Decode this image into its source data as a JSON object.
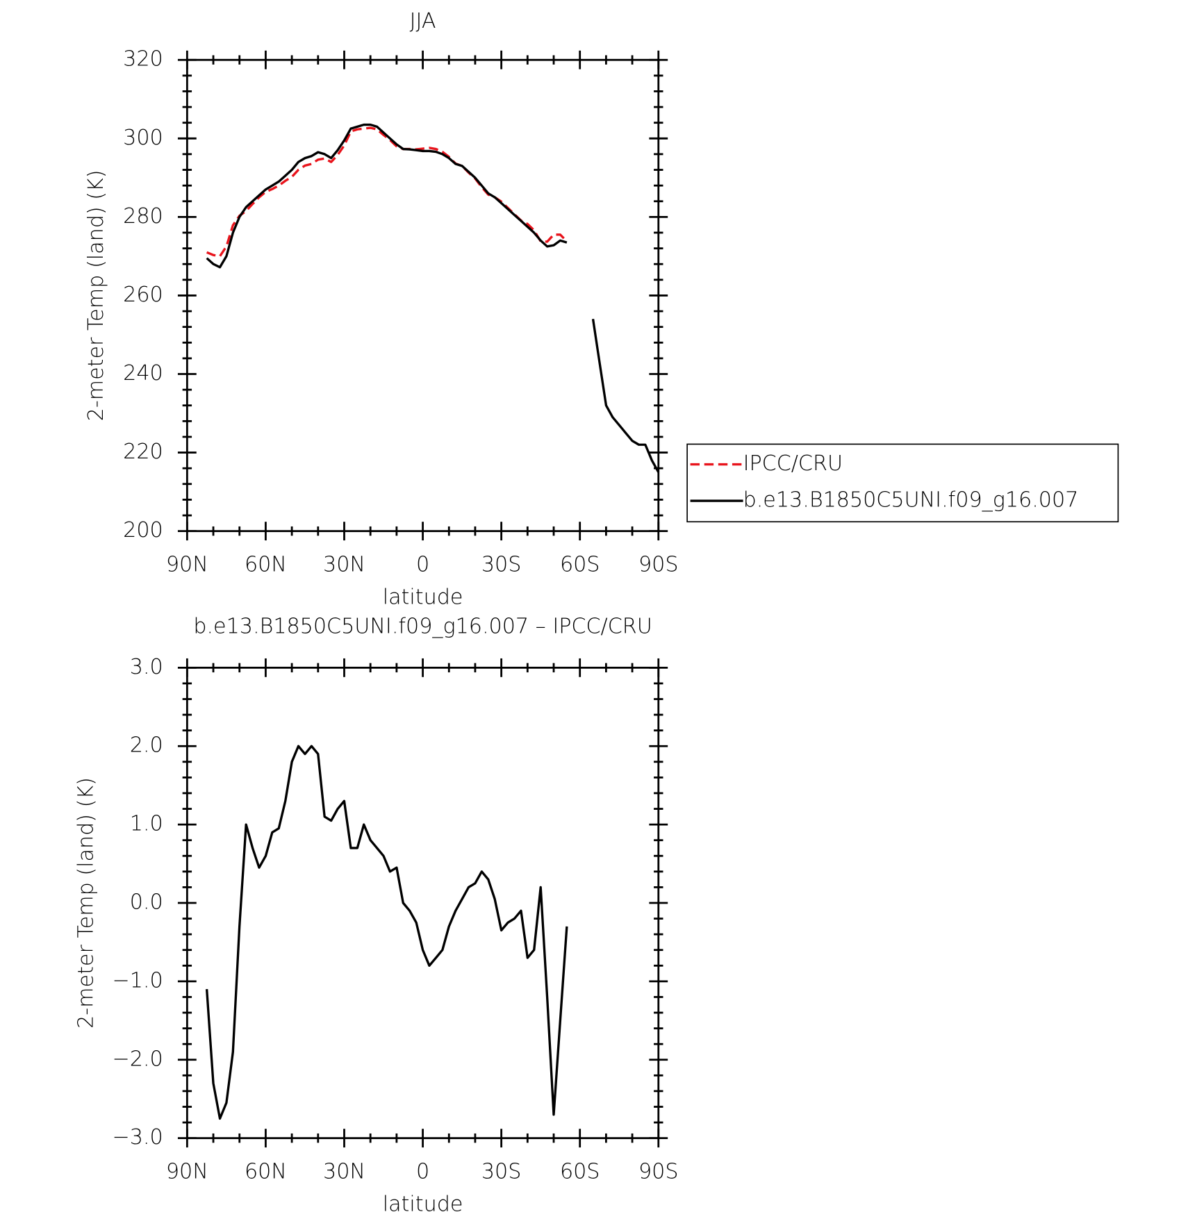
{
  "chart_data": [
    {
      "type": "line",
      "title": "JJA",
      "x_label": "latitude",
      "y_label": "2-meter Temp (land) (K)",
      "x": [
        82.5,
        80,
        77.5,
        75,
        72.5,
        70,
        67.5,
        65,
        62.5,
        60,
        57.5,
        55,
        52.5,
        50,
        47.5,
        45,
        42.5,
        40,
        37.5,
        35,
        32.5,
        30,
        27.5,
        25,
        22.5,
        20,
        17.5,
        15,
        12.5,
        10,
        7.5,
        5,
        2.5,
        0,
        -2.5,
        -5,
        -7.5,
        -10,
        -12.5,
        -15,
        -17.5,
        -20,
        -22.5,
        -25,
        -27.5,
        -30,
        -32.5,
        -35,
        -37.5,
        -40,
        -42.5,
        -45,
        -47.5,
        -50,
        -52.5,
        -55,
        -57.5,
        -60,
        -62.5,
        -65,
        -67.5,
        -70,
        -72.5,
        -75,
        -77.5,
        -80,
        -82.5,
        -85,
        -87.5,
        -90
      ],
      "series": [
        {
          "name": "IPCC/CRU",
          "color": "#e8141c",
          "line_style": "dashed",
          "values": [
            271,
            270.3,
            270,
            272.5,
            277.9,
            280.3,
            281.5,
            283.3,
            285,
            286.4,
            287.1,
            288,
            289.2,
            290.2,
            292,
            293.1,
            293.5,
            294.6,
            294.9,
            294,
            295.8,
            298.2,
            301.8,
            302.3,
            302.5,
            302.7,
            302.3,
            300.9,
            299.6,
            298,
            297.3,
            297.3,
            297.2,
            297.4,
            297.6,
            297.3,
            296.6,
            295.3,
            293.6,
            293,
            291.3,
            289.8,
            287.6,
            285.7,
            285,
            283.9,
            282.3,
            280.7,
            279.1,
            278.2,
            276.6,
            273.8,
            273.7,
            275.5,
            275.5,
            273.8,
            null,
            null,
            null,
            null,
            null,
            null,
            null,
            null,
            null,
            null,
            null,
            null,
            null,
            null
          ]
        },
        {
          "name": "b.e13.B1850C5UNI.f09_g16.007",
          "color": "#000000",
          "line_style": "solid",
          "values": [
            269.5,
            268,
            267.2,
            270,
            276,
            280,
            282.5,
            284,
            285.5,
            287,
            288,
            289,
            290.5,
            292,
            294,
            295,
            295.5,
            296.5,
            296,
            295,
            297,
            299.5,
            302.5,
            303,
            303.5,
            303.5,
            303,
            301.5,
            300,
            298.5,
            297.3,
            297.2,
            297,
            296.8,
            296.8,
            296.6,
            296,
            295,
            293.5,
            293,
            291.5,
            290,
            288,
            286,
            285,
            283.5,
            282,
            280.5,
            279,
            277.5,
            276,
            274,
            272.5,
            272.8,
            274,
            273.5,
            null,
            null,
            null,
            254,
            243,
            232,
            229,
            227,
            225,
            223,
            222,
            222,
            218,
            215
          ]
        }
      ],
      "xlim": [
        90,
        -90
      ],
      "xticks": [
        {
          "value": 90,
          "label": "90N"
        },
        {
          "value": 60,
          "label": "60N"
        },
        {
          "value": 30,
          "label": "30N"
        },
        0,
        {
          "value": -30,
          "label": "30S"
        },
        {
          "value": -60,
          "label": "60S"
        },
        {
          "value": -90,
          "label": "90S"
        }
      ],
      "ylim": [
        200,
        320
      ],
      "yticks": [
        200,
        220,
        240,
        260,
        280,
        300,
        320
      ],
      "legend": "right"
    },
    {
      "type": "line",
      "title": "b.e13.B1850C5UNI.f09_g16.007 – IPCC/CRU",
      "x_label": "latitude",
      "y_label": "2-meter Temp (land) (K)",
      "x": [
        82.5,
        80,
        77.5,
        75,
        72.5,
        70,
        67.5,
        65,
        62.5,
        60,
        57.5,
        55,
        52.5,
        50,
        47.5,
        45,
        42.5,
        40,
        37.5,
        35,
        32.5,
        30,
        27.5,
        25,
        22.5,
        20,
        17.5,
        15,
        12.5,
        10,
        7.5,
        5,
        2.5,
        0,
        -2.5,
        -5,
        -7.5,
        -10,
        -12.5,
        -15,
        -17.5,
        -20,
        -22.5,
        -25,
        -27.5,
        -30,
        -32.5,
        -35,
        -37.5,
        -40,
        -42.5,
        -45,
        -47.5,
        -50,
        -52.5,
        -55
      ],
      "values": [
        -1.1,
        -2.3,
        -2.75,
        -2.55,
        -1.9,
        -0.3,
        1.0,
        0.7,
        0.45,
        0.6,
        0.9,
        0.95,
        1.3,
        1.8,
        2.0,
        1.9,
        2.0,
        1.9,
        1.1,
        1.05,
        1.2,
        1.3,
        0.7,
        0.7,
        1.0,
        0.8,
        0.7,
        0.6,
        0.4,
        0.45,
        0.0,
        -0.1,
        -0.25,
        -0.6,
        -0.8,
        -0.7,
        -0.6,
        -0.3,
        -0.1,
        0.05,
        0.2,
        0.25,
        0.4,
        0.3,
        0.05,
        -0.35,
        -0.25,
        -0.2,
        -0.1,
        -0.7,
        -0.6,
        0.2,
        -1.2,
        -2.7,
        -1.5,
        -0.3
      ],
      "color": "#000000",
      "line_style": "solid",
      "xlim": [
        90,
        -90
      ],
      "xticks": [
        {
          "value": 90,
          "label": "90N"
        },
        {
          "value": 60,
          "label": "60N"
        },
        {
          "value": 30,
          "label": "30N"
        },
        0,
        {
          "value": -30,
          "label": "30S"
        },
        {
          "value": -60,
          "label": "60S"
        },
        {
          "value": -90,
          "label": "90S"
        }
      ],
      "ylim": [
        -3,
        3
      ],
      "yticks": [
        {
          "value": -3,
          "label": "−3.0"
        },
        {
          "value": -2,
          "label": "−2.0"
        },
        {
          "value": -1,
          "label": "−1.0"
        },
        {
          "value": 0,
          "label": "0.0"
        },
        {
          "value": 1,
          "label": "1.0"
        },
        {
          "value": 2,
          "label": "2.0"
        },
        {
          "value": 3,
          "label": "3.0"
        }
      ]
    }
  ]
}
